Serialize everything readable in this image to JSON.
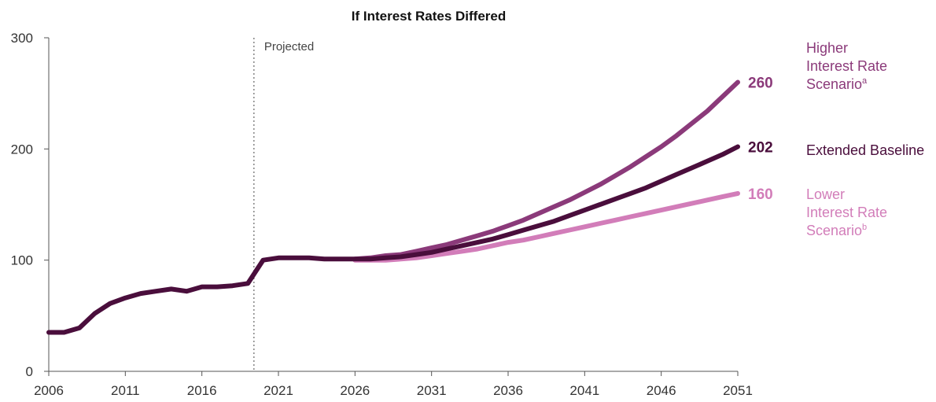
{
  "chart_data": {
    "type": "line",
    "title": "If Interest Rates Differed",
    "xlabel": "",
    "ylabel": "",
    "xlim": [
      2006,
      2051
    ],
    "ylim": [
      0,
      300
    ],
    "x_ticks": [
      "2006",
      "2011",
      "2016",
      "2021",
      "2026",
      "2031",
      "2036",
      "2041",
      "2046",
      "2051"
    ],
    "y_ticks": [
      "0",
      "100",
      "200",
      "300"
    ],
    "projected_label": "Projected",
    "projected_start": 2019.4,
    "grid": false,
    "series": [
      {
        "name": "Higher Interest Rate Scenario",
        "label_lines": [
          "Higher",
          "Interest Rate",
          "Scenario"
        ],
        "superscript": "a",
        "end_label": "260",
        "color": "#8b3a7a",
        "x": [
          2026,
          2027,
          2028,
          2029,
          2030,
          2031,
          2032,
          2033,
          2034,
          2035,
          2036,
          2037,
          2038,
          2039,
          2040,
          2041,
          2042,
          2043,
          2044,
          2045,
          2046,
          2047,
          2048,
          2049,
          2050,
          2051
        ],
        "values": [
          101,
          102,
          104,
          105,
          108,
          111,
          114,
          118,
          122,
          126,
          131,
          136,
          142,
          148,
          154,
          161,
          168,
          176,
          184,
          193,
          202,
          212,
          223,
          234,
          247,
          260
        ]
      },
      {
        "name": "Lower Interest Rate Scenario",
        "label_lines": [
          "Lower",
          "Interest Rate",
          "Scenario"
        ],
        "superscript": "b",
        "end_label": "160",
        "color": "#d27db9",
        "x": [
          2026,
          2027,
          2028,
          2029,
          2030,
          2031,
          2032,
          2033,
          2034,
          2035,
          2036,
          2037,
          2038,
          2039,
          2040,
          2041,
          2042,
          2043,
          2044,
          2045,
          2046,
          2047,
          2048,
          2049,
          2050,
          2051
        ],
        "values": [
          100,
          100,
          100,
          101,
          102,
          104,
          106,
          108,
          110,
          113,
          116,
          118,
          121,
          124,
          127,
          130,
          133,
          136,
          139,
          142,
          145,
          148,
          151,
          154,
          157,
          160
        ]
      },
      {
        "name": "Extended Baseline",
        "label_lines": [
          "Extended Baseline"
        ],
        "superscript": "",
        "end_label": "202",
        "color": "#4a0e3c",
        "x": [
          2006,
          2007,
          2008,
          2009,
          2010,
          2011,
          2012,
          2013,
          2014,
          2015,
          2016,
          2017,
          2018,
          2019,
          2020,
          2021,
          2022,
          2023,
          2024,
          2025,
          2026,
          2027,
          2028,
          2029,
          2030,
          2031,
          2032,
          2033,
          2034,
          2035,
          2036,
          2037,
          2038,
          2039,
          2040,
          2041,
          2042,
          2043,
          2044,
          2045,
          2046,
          2047,
          2048,
          2049,
          2050,
          2051
        ],
        "values": [
          35,
          35,
          39,
          52,
          61,
          66,
          70,
          72,
          74,
          72,
          76,
          76,
          77,
          79,
          100,
          102,
          102,
          102,
          101,
          101,
          101,
          101,
          102,
          103,
          105,
          107,
          110,
          113,
          116,
          119,
          123,
          127,
          131,
          135,
          140,
          145,
          150,
          155,
          160,
          165,
          171,
          177,
          183,
          189,
          195,
          202
        ]
      }
    ]
  }
}
